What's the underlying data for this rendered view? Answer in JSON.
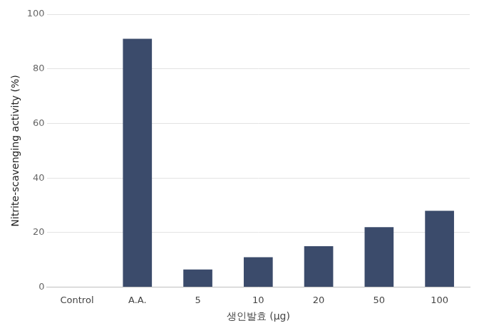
{
  "chart_data": {
    "type": "bar",
    "categories": [
      "Control",
      "A.A.",
      "5",
      "10",
      "20",
      "50",
      "100"
    ],
    "values": [
      0,
      91,
      6.5,
      11,
      15,
      22,
      28
    ],
    "color": "#3b4b6b",
    "x_label": "생인발효 (μg)",
    "y_label": "Nitrite-scavenging activity (%)",
    "ylim": [
      0,
      100
    ],
    "yticks": [
      0,
      20,
      40,
      60,
      80,
      100
    ],
    "grid": true
  }
}
